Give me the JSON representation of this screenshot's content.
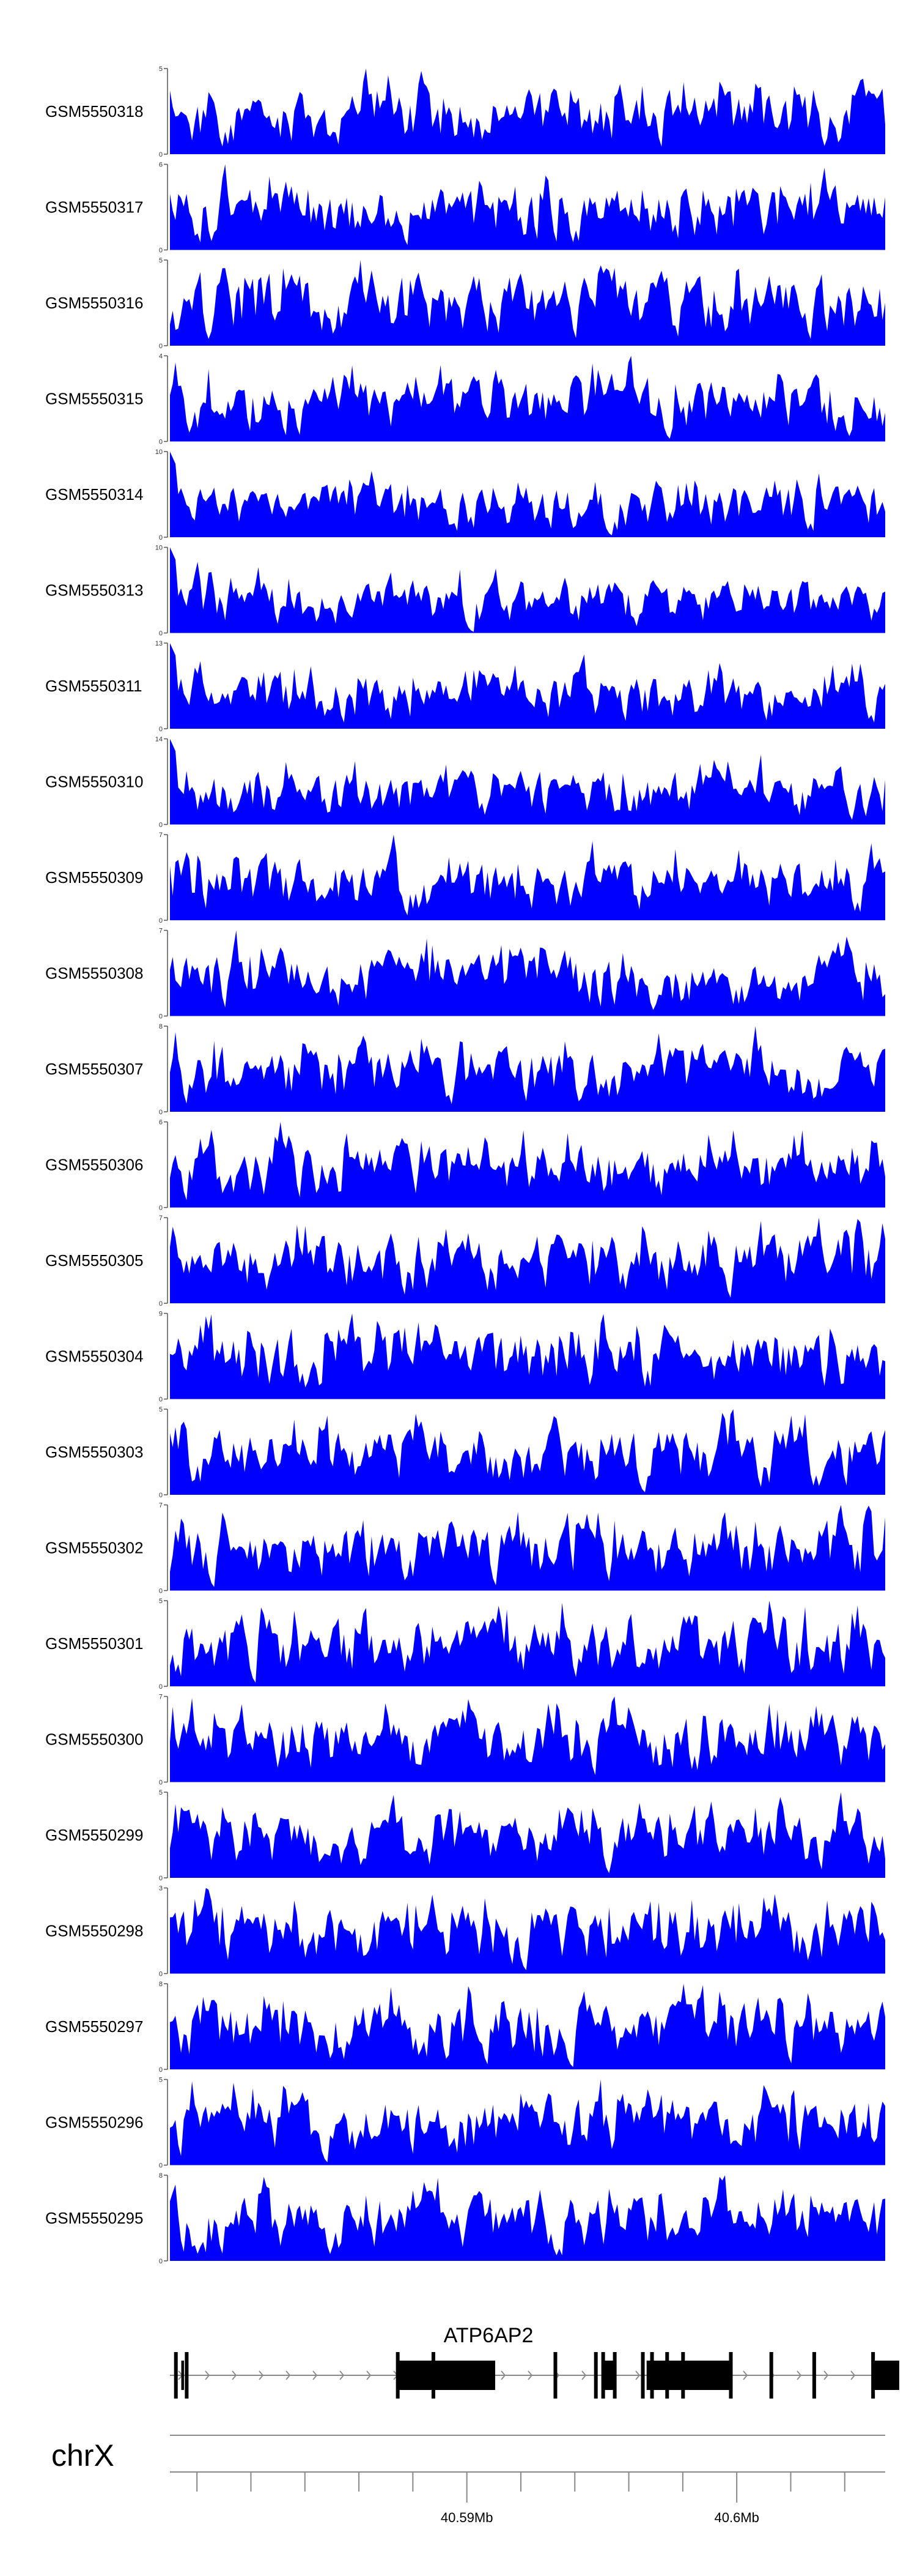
{
  "chart_data": {
    "type": "area",
    "tracks": [
      {
        "name": "GSM5550318",
        "ymax": 5,
        "ymin": 0,
        "seed": 318
      },
      {
        "name": "GSM5550317",
        "ymax": 6,
        "ymin": 0,
        "seed": 317
      },
      {
        "name": "GSM5550316",
        "ymax": 5,
        "ymin": 0,
        "seed": 316
      },
      {
        "name": "GSM5550315",
        "ymax": 4,
        "ymin": 0,
        "seed": 315
      },
      {
        "name": "GSM5550314",
        "ymax": 10,
        "ymin": 0,
        "seed": 314
      },
      {
        "name": "GSM5550313",
        "ymax": 10,
        "ymin": 0,
        "seed": 313
      },
      {
        "name": "GSM5550311",
        "ymax": 13,
        "ymin": 0,
        "seed": 311
      },
      {
        "name": "GSM5550310",
        "ymax": 14,
        "ymin": 0,
        "seed": 310
      },
      {
        "name": "GSM5550309",
        "ymax": 7,
        "ymin": 0,
        "seed": 309
      },
      {
        "name": "GSM5550308",
        "ymax": 7,
        "ymin": 0,
        "seed": 308
      },
      {
        "name": "GSM5550307",
        "ymax": 8,
        "ymin": 0,
        "seed": 307
      },
      {
        "name": "GSM5550306",
        "ymax": 6,
        "ymin": 0,
        "seed": 306
      },
      {
        "name": "GSM5550305",
        "ymax": 7,
        "ymin": 0,
        "seed": 305
      },
      {
        "name": "GSM5550304",
        "ymax": 9,
        "ymin": 0,
        "seed": 304
      },
      {
        "name": "GSM5550303",
        "ymax": 5,
        "ymin": 0,
        "seed": 303
      },
      {
        "name": "GSM5550302",
        "ymax": 7,
        "ymin": 0,
        "seed": 302
      },
      {
        "name": "GSM5550301",
        "ymax": 5,
        "ymin": 0,
        "seed": 301
      },
      {
        "name": "GSM5550300",
        "ymax": 7,
        "ymin": 0,
        "seed": 300
      },
      {
        "name": "GSM5550299",
        "ymax": 5,
        "ymin": 0,
        "seed": 299
      },
      {
        "name": "GSM5550298",
        "ymax": 3,
        "ymin": 0,
        "seed": 298
      },
      {
        "name": "GSM5550297",
        "ymax": 8,
        "ymin": 0,
        "seed": 297
      },
      {
        "name": "GSM5550296",
        "ymax": 5,
        "ymin": 0,
        "seed": 296
      },
      {
        "name": "GSM5550295",
        "ymax": 8,
        "ymin": 0,
        "seed": 295
      }
    ],
    "series_color": "#0000ff",
    "gene": {
      "name": "ATP6AP2",
      "strand": "+",
      "exons": [
        [
          40579420,
          40579520
        ],
        [
          40587440,
          40591050
        ],
        [
          40595050,
          40595500
        ],
        [
          40596660,
          40599780
        ],
        [
          40605050,
          40606020
        ]
      ],
      "exon_ticks": [
        40579220,
        40579620,
        40587440,
        40588760,
        40593280,
        40594780,
        40595050,
        40595480,
        40596520,
        40596860,
        40597420,
        40598010,
        40599780,
        40601280,
        40602870,
        40605050
      ]
    },
    "chromosome": "chrX",
    "xlim": [
      40579000,
      40605500
    ],
    "x_ticks": [
      {
        "value": 40590000,
        "label": "40.59Mb"
      },
      {
        "value": 40600000,
        "label": "40.6Mb"
      }
    ],
    "x_minor_step": 2000
  }
}
